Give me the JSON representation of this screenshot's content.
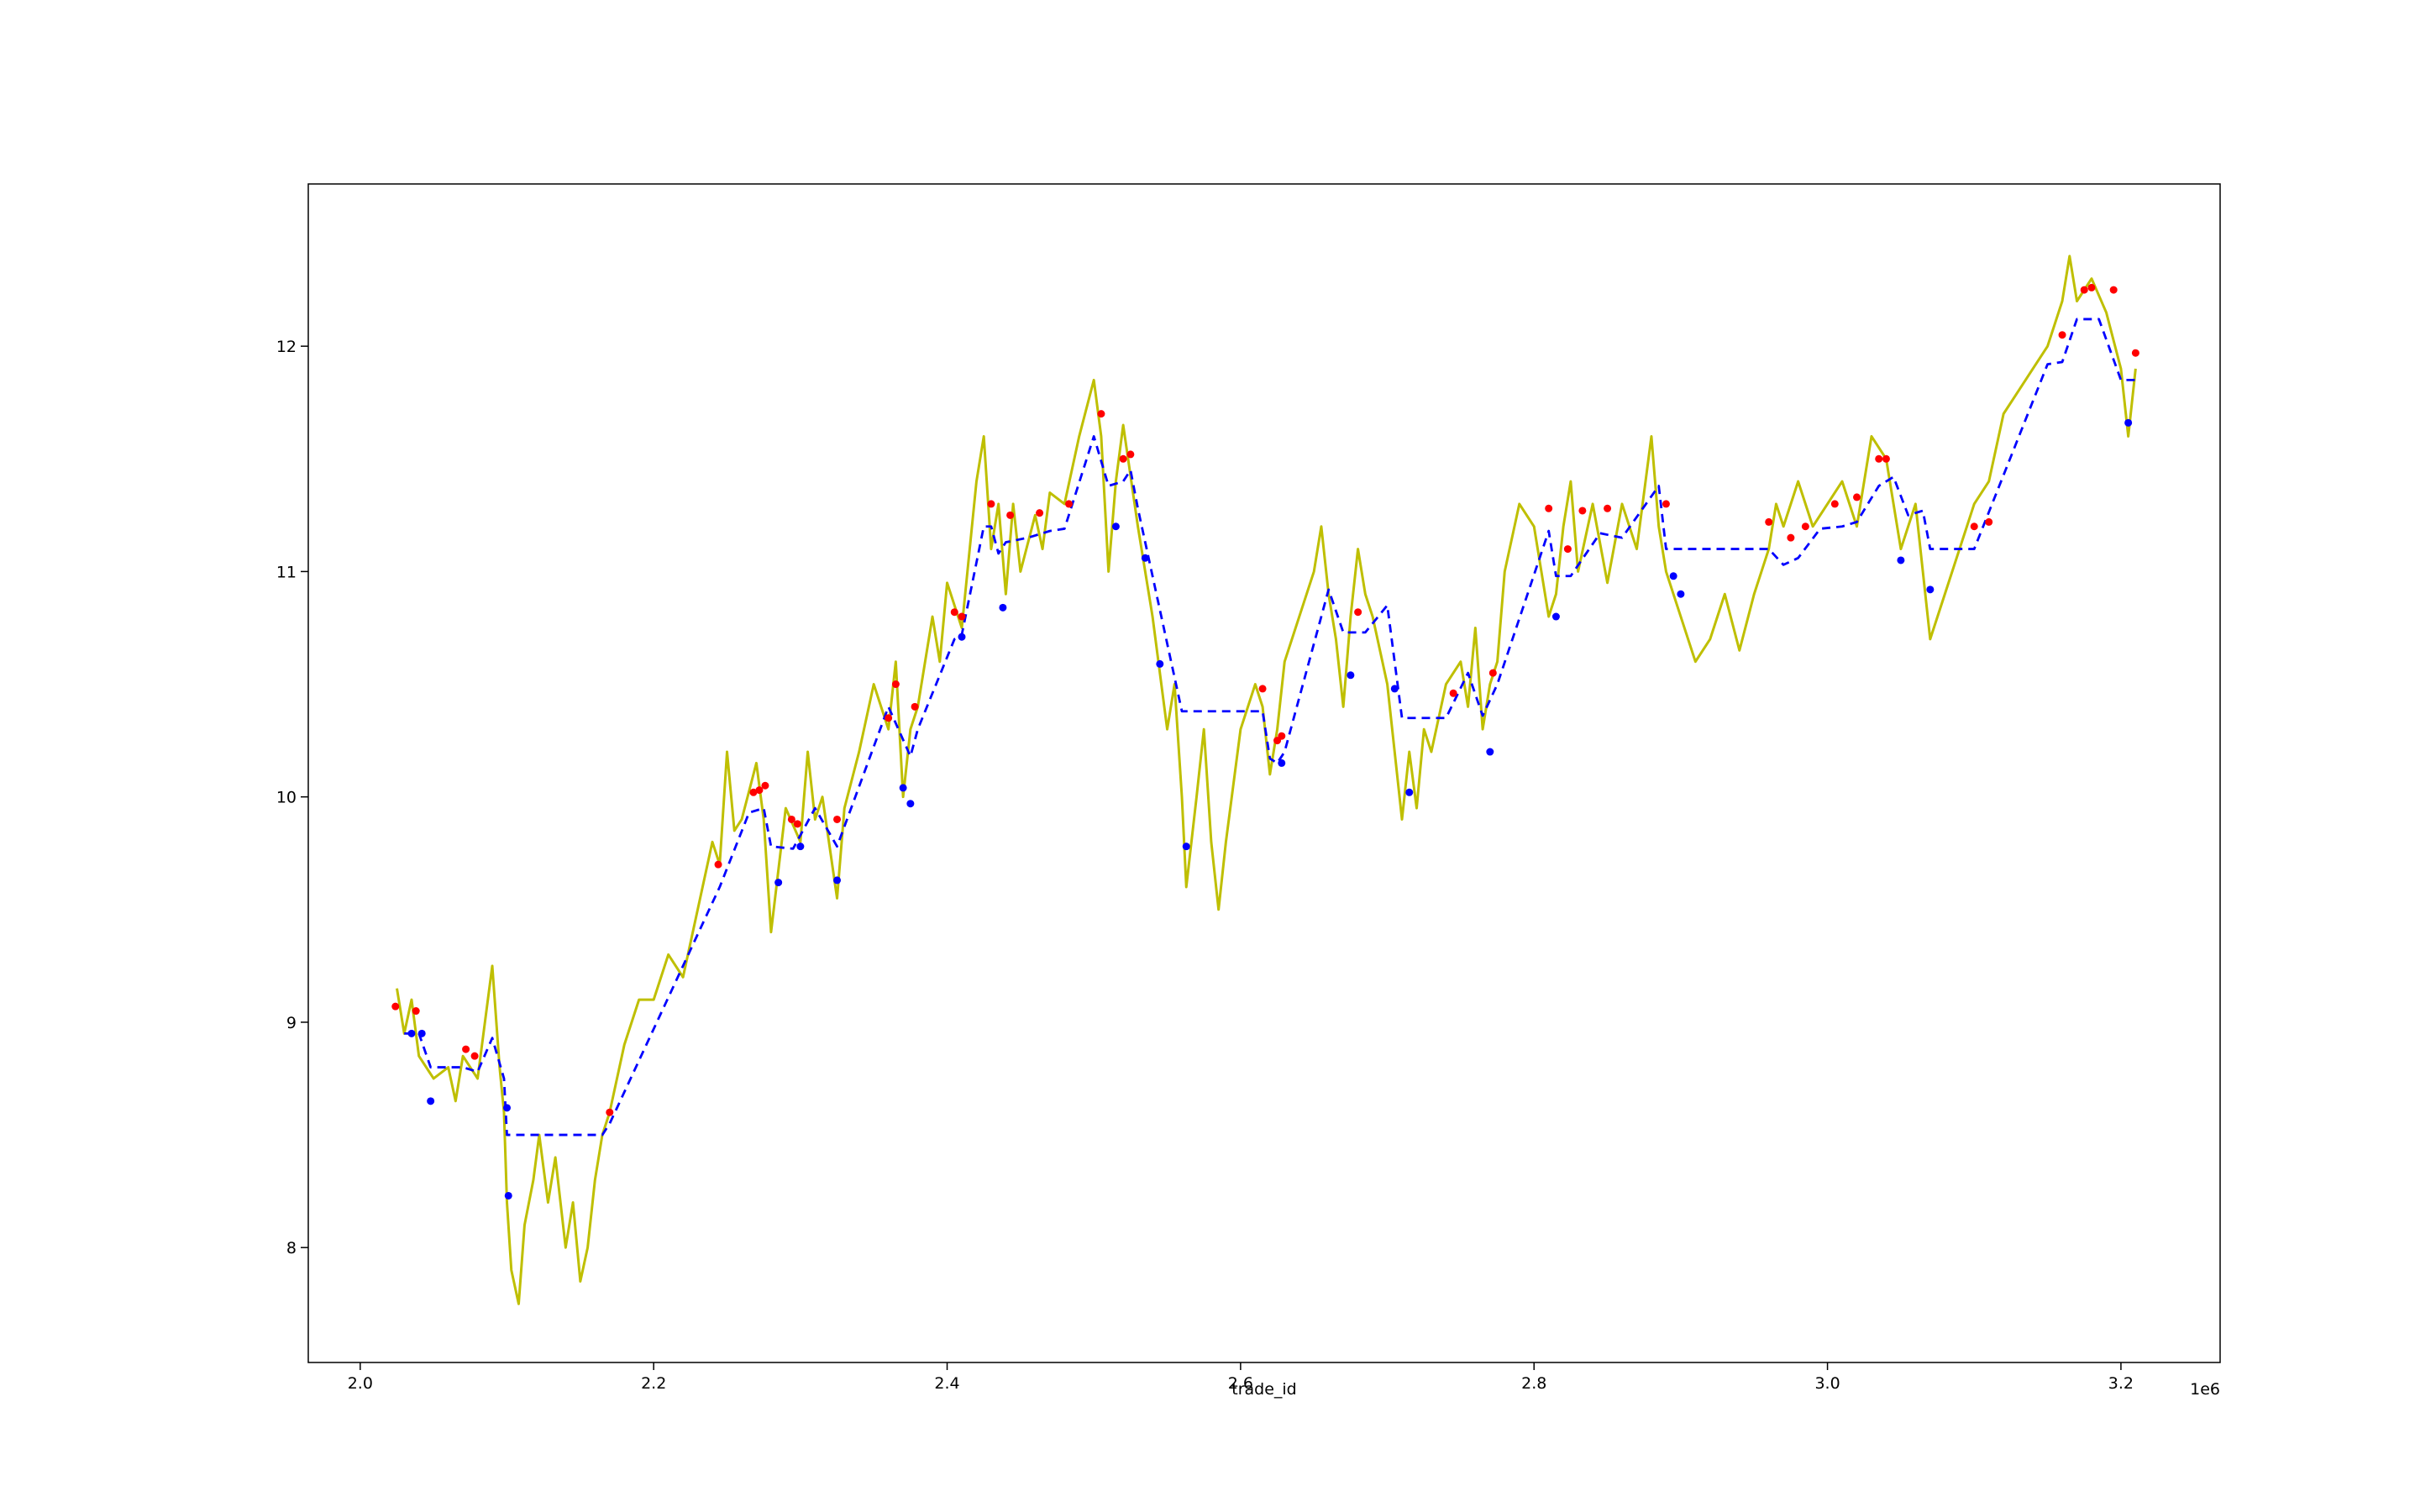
{
  "chart_data": {
    "type": "line",
    "xlabel": "trade_id",
    "x_offset": "1e6",
    "xlim": [
      1964600,
      3267600
    ],
    "ylim": [
      7.49,
      12.72
    ],
    "xticks": [
      {
        "value": 2000000,
        "label": "2.0"
      },
      {
        "value": 2200000,
        "label": "2.2"
      },
      {
        "value": 2400000,
        "label": "2.4"
      },
      {
        "value": 2600000,
        "label": "2.6"
      },
      {
        "value": 2800000,
        "label": "2.8"
      },
      {
        "value": 3000000,
        "label": "3.0"
      },
      {
        "value": 3200000,
        "label": "3.2"
      }
    ],
    "yticks": [
      8,
      9,
      10,
      11,
      12
    ],
    "series": [
      {
        "color": "#bfbf00",
        "mode": "solid",
        "x": [
          2025000,
          2030000,
          2035000,
          2040000,
          2045000,
          2050000,
          2060000,
          2065000,
          2070000,
          2080000,
          2090000,
          2095000,
          2098000,
          2100000,
          2103000,
          2108000,
          2112000,
          2118000,
          2122000,
          2128000,
          2133000,
          2140000,
          2145000,
          2150000,
          2155000,
          2160000,
          2165000,
          2170000,
          2175000,
          2180000,
          2190000,
          2200000,
          2210000,
          2220000,
          2230000,
          2240000,
          2245000,
          2250000,
          2255000,
          2260000,
          2270000,
          2275000,
          2280000,
          2290000,
          2300000,
          2305000,
          2310000,
          2315000,
          2325000,
          2330000,
          2340000,
          2350000,
          2360000,
          2365000,
          2370000,
          2375000,
          2380000,
          2390000,
          2395000,
          2400000,
          2410000,
          2420000,
          2425000,
          2430000,
          2435000,
          2440000,
          2445000,
          2450000,
          2460000,
          2465000,
          2470000,
          2480000,
          2490000,
          2500000,
          2505000,
          2510000,
          2515000,
          2520000,
          2530000,
          2540000,
          2550000,
          2555000,
          2560000,
          2563000,
          2570000,
          2575000,
          2580000,
          2585000,
          2590000,
          2600000,
          2610000,
          2615000,
          2620000,
          2625000,
          2630000,
          2640000,
          2650000,
          2655000,
          2660000,
          2665000,
          2670000,
          2675000,
          2680000,
          2685000,
          2690000,
          2700000,
          2705000,
          2710000,
          2715000,
          2720000,
          2725000,
          2730000,
          2740000,
          2750000,
          2755000,
          2760000,
          2765000,
          2770000,
          2775000,
          2780000,
          2790000,
          2800000,
          2810000,
          2815000,
          2820000,
          2825000,
          2830000,
          2840000,
          2850000,
          2860000,
          2870000,
          2880000,
          2885000,
          2890000,
          2900000,
          2910000,
          2920000,
          2930000,
          2940000,
          2950000,
          2960000,
          2965000,
          2970000,
          2980000,
          2990000,
          3000000,
          3010000,
          3020000,
          3030000,
          3040000,
          3050000,
          3060000,
          3065000,
          3070000,
          3080000,
          3090000,
          3100000,
          3110000,
          3120000,
          3130000,
          3140000,
          3150000,
          3160000,
          3165000,
          3170000,
          3180000,
          3190000,
          3200000,
          3205000,
          3210000
        ],
        "values": [
          9.15,
          8.95,
          9.1,
          8.85,
          8.8,
          8.75,
          8.8,
          8.65,
          8.85,
          8.75,
          9.25,
          8.8,
          8.6,
          8.2,
          7.9,
          7.75,
          8.1,
          8.3,
          8.5,
          8.2,
          8.4,
          8.0,
          8.2,
          7.85,
          8.0,
          8.3,
          8.5,
          8.6,
          8.75,
          8.9,
          9.1,
          9.1,
          9.3,
          9.2,
          9.5,
          9.8,
          9.7,
          10.2,
          9.85,
          9.9,
          10.15,
          9.9,
          9.4,
          9.95,
          9.8,
          10.2,
          9.9,
          10.0,
          9.55,
          9.95,
          10.2,
          10.5,
          10.3,
          10.6,
          10.0,
          10.3,
          10.4,
          10.8,
          10.6,
          10.95,
          10.75,
          11.4,
          11.6,
          11.1,
          11.3,
          10.9,
          11.3,
          11.0,
          11.25,
          11.1,
          11.35,
          11.3,
          11.6,
          11.85,
          11.6,
          11.0,
          11.4,
          11.65,
          11.2,
          10.8,
          10.3,
          10.5,
          10.0,
          9.6,
          10.0,
          10.3,
          9.8,
          9.5,
          9.8,
          10.3,
          10.5,
          10.4,
          10.1,
          10.3,
          10.6,
          10.8,
          11.0,
          11.2,
          10.9,
          10.7,
          10.4,
          10.8,
          11.1,
          10.9,
          10.8,
          10.5,
          10.2,
          9.9,
          10.2,
          9.95,
          10.3,
          10.2,
          10.5,
          10.6,
          10.4,
          10.75,
          10.3,
          10.5,
          10.6,
          11.0,
          11.3,
          11.2,
          10.8,
          10.9,
          11.2,
          11.4,
          11.0,
          11.3,
          10.95,
          11.3,
          11.1,
          11.6,
          11.2,
          11.0,
          10.8,
          10.6,
          10.7,
          10.9,
          10.65,
          10.9,
          11.1,
          11.3,
          11.2,
          11.4,
          11.2,
          11.3,
          11.4,
          11.2,
          11.6,
          11.5,
          11.1,
          11.3,
          11.0,
          10.7,
          10.9,
          11.1,
          11.3,
          11.4,
          11.7,
          11.8,
          11.9,
          12.0,
          12.2,
          12.4,
          12.2,
          12.3,
          12.15,
          11.9,
          11.6,
          11.9
        ]
      },
      {
        "color": "#0000ff",
        "mode": "dashed",
        "x": [
          2030000,
          2040000,
          2048000,
          2070000,
          2080000,
          2090000,
          2098000,
          2100000,
          2165000,
          2170000,
          2245000,
          2265000,
          2275000,
          2280000,
          2295000,
          2310000,
          2325000,
          2360000,
          2375000,
          2380000,
          2405000,
          2410000,
          2425000,
          2430000,
          2435000,
          2440000,
          2455000,
          2470000,
          2480000,
          2500000,
          2510000,
          2520000,
          2525000,
          2530000,
          2560000,
          2615000,
          2620000,
          2625000,
          2630000,
          2660000,
          2670000,
          2685000,
          2700000,
          2710000,
          2740000,
          2755000,
          2765000,
          2775000,
          2810000,
          2815000,
          2825000,
          2845000,
          2860000,
          2885000,
          2890000,
          2960000,
          2970000,
          2980000,
          2995000,
          3010000,
          3020000,
          3035000,
          3045000,
          3055000,
          3065000,
          3070000,
          3100000,
          3150000,
          3160000,
          3170000,
          3185000,
          3200000,
          3210000
        ],
        "values": [
          8.95,
          8.95,
          8.8,
          8.8,
          8.78,
          8.93,
          8.75,
          8.5,
          8.5,
          8.55,
          9.6,
          9.93,
          9.95,
          9.78,
          9.77,
          9.95,
          9.78,
          10.4,
          10.18,
          10.3,
          10.7,
          10.72,
          11.2,
          11.2,
          11.08,
          11.13,
          11.15,
          11.18,
          11.19,
          11.6,
          11.38,
          11.4,
          11.45,
          11.28,
          10.38,
          10.38,
          10.17,
          10.15,
          10.2,
          10.92,
          10.73,
          10.73,
          10.85,
          10.35,
          10.35,
          10.55,
          10.36,
          10.5,
          11.18,
          10.98,
          10.98,
          11.17,
          11.15,
          11.38,
          11.1,
          11.1,
          11.03,
          11.06,
          11.19,
          11.2,
          11.22,
          11.38,
          11.42,
          11.25,
          11.27,
          11.1,
          11.1,
          11.92,
          11.93,
          12.12,
          12.12,
          11.85,
          11.85
        ]
      },
      {
        "color": "#ff0000",
        "mode": "points",
        "x": [
          2024000,
          2038000,
          2072000,
          2078000,
          2170000,
          2244000,
          2268000,
          2272000,
          2276000,
          2294000,
          2298000,
          2325000,
          2360000,
          2365000,
          2378000,
          2405000,
          2410000,
          2430000,
          2443000,
          2463000,
          2483000,
          2505000,
          2520000,
          2525000,
          2615000,
          2625000,
          2628000,
          2680000,
          2745000,
          2772000,
          2810000,
          2823000,
          2833000,
          2850000,
          2890000,
          2960000,
          2975000,
          2985000,
          3005000,
          3020000,
          3035000,
          3040000,
          3100000,
          3110000,
          3160000,
          3175000,
          3180000,
          3195000,
          3210000
        ],
        "values": [
          9.07,
          9.05,
          8.88,
          8.85,
          8.6,
          9.7,
          10.02,
          10.03,
          10.05,
          9.9,
          9.88,
          9.9,
          10.35,
          10.5,
          10.4,
          10.82,
          10.8,
          11.3,
          11.25,
          11.26,
          11.3,
          11.7,
          11.5,
          11.52,
          10.48,
          10.25,
          10.27,
          10.82,
          10.46,
          10.55,
          11.28,
          11.1,
          11.27,
          11.28,
          11.3,
          11.22,
          11.15,
          11.2,
          11.3,
          11.33,
          11.5,
          11.5,
          11.2,
          11.22,
          12.05,
          12.25,
          12.26,
          12.25,
          11.97
        ]
      },
      {
        "color": "#0000ff",
        "mode": "points",
        "x": [
          2035000,
          2042000,
          2048000,
          2100000,
          2101000,
          2285000,
          2300000,
          2325000,
          2370000,
          2375000,
          2410000,
          2438000,
          2515000,
          2535000,
          2545000,
          2563000,
          2628000,
          2675000,
          2705000,
          2715000,
          2770000,
          2815000,
          2895000,
          2900000,
          3050000,
          3070000,
          3205000
        ],
        "values": [
          8.95,
          8.95,
          8.65,
          8.62,
          8.23,
          9.62,
          9.78,
          9.63,
          10.04,
          9.97,
          10.71,
          10.84,
          11.2,
          11.06,
          10.59,
          9.78,
          10.15,
          10.54,
          10.48,
          10.02,
          10.2,
          10.8,
          10.98,
          10.9,
          11.05,
          10.92,
          11.66
        ]
      }
    ]
  }
}
